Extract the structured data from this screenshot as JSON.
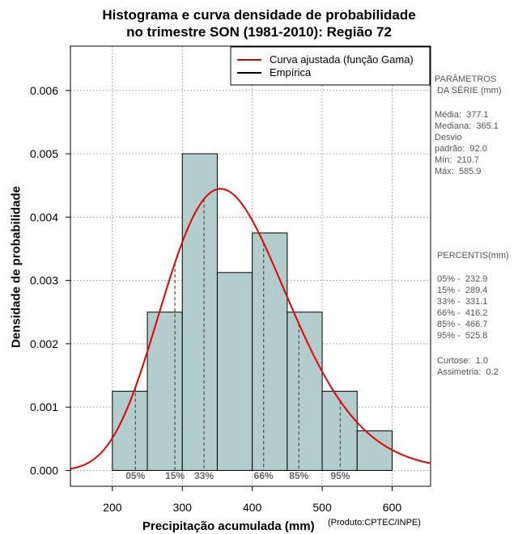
{
  "title_line1": "Histograma e curva densidade de probabilidade",
  "title_line2": "no trimestre SON (1981-2010): Região 72",
  "credit": "(Produto:CPTEC/INPE)",
  "colors": {
    "bar": "#b3cccc",
    "curve": "#e00000",
    "empirical": "#000000",
    "grid": "#aaaaaa"
  },
  "chart_data": {
    "type": "bar",
    "xlabel": "Precipitação acumulada (mm)",
    "ylabel": "Densidade de probabilidade",
    "xlim": [
      140,
      655
    ],
    "ylim": [
      -0.00025,
      0.0067
    ],
    "xticks": [
      200,
      300,
      400,
      500,
      600
    ],
    "yticks": [
      0.0,
      0.001,
      0.002,
      0.003,
      0.004,
      0.005,
      0.006
    ],
    "ytick_labels": [
      "0.000",
      "0.001",
      "0.002",
      "0.003",
      "0.004",
      "0.005",
      "0.006"
    ],
    "bins": [
      {
        "from": 200,
        "to": 250,
        "density": 0.00125
      },
      {
        "from": 250,
        "to": 300,
        "density": 0.0025
      },
      {
        "from": 300,
        "to": 350,
        "density": 0.005
      },
      {
        "from": 350,
        "to": 400,
        "density": 0.003125
      },
      {
        "from": 400,
        "to": 450,
        "density": 0.00375
      },
      {
        "from": 450,
        "to": 500,
        "density": 0.0025
      },
      {
        "from": 500,
        "to": 550,
        "density": 0.00125
      },
      {
        "from": 550,
        "to": 600,
        "density": 0.000625
      }
    ],
    "fitted_curve": {
      "name": "Curva ajustada (função Gama)",
      "distribution": "gamma",
      "shape": 16.8,
      "scale": 22.45
    },
    "empirical": {
      "name": "Empírica"
    },
    "percentile_marks": [
      {
        "label": "05%",
        "value": 232.9
      },
      {
        "label": "15%",
        "value": 289.4
      },
      {
        "label": "33%",
        "value": 331.1
      },
      {
        "label": "66%",
        "value": 416.2
      },
      {
        "label": "85%",
        "value": 466.7
      },
      {
        "label": "95%",
        "value": 525.8
      }
    ],
    "legend_position": "top-right"
  },
  "stats_panel": {
    "header1": "PARÂMETROS",
    "header2": " DA SÉRIE (mm)",
    "lines": [
      "Média:  377.1",
      "Mediana:  365.1",
      "Desvio",
      "padrão:  92.0",
      "Mín:  210.7",
      "Máx:  585.9"
    ]
  },
  "percentile_panel": {
    "header": " PERCENTIS(mm)",
    "lines": [
      "05% -  232.9",
      "15% -  289.4",
      "33% -  331.1",
      "66% -  416.2",
      "85% -  466.7",
      "95% -  525.8"
    ],
    "curtose": "Curtose:  1.0",
    "assimetria": "Assimetria:  0.2"
  }
}
